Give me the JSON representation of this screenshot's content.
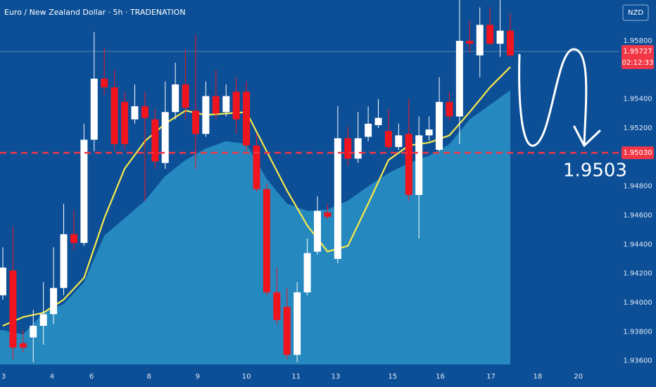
{
  "chart_data": {
    "type": "candlestick",
    "title": "Euro / New Zealand Dollar · 5h · TRADENATION",
    "currency": "NZD",
    "open": [
      1.9405,
      1.9422,
      1.9372,
      1.9376,
      1.9384,
      1.9392,
      1.941,
      1.9447,
      1.9441,
      1.9512,
      1.9554,
      1.9548,
      1.9538,
      1.9526,
      1.9535,
      1.9526,
      1.9496,
      1.9531,
      1.955,
      1.9532,
      1.9516,
      1.9542,
      1.9531,
      1.9545,
      1.9545,
      1.9508,
      1.9478,
      1.9407,
      1.9397,
      1.9364,
      1.9407,
      1.9435,
      1.9462,
      1.943,
      1.9513,
      1.9499,
      1.9514,
      1.9522,
      1.9518,
      1.9507,
      1.9516,
      1.9474,
      1.9515,
      1.9505,
      1.9538,
      1.9528,
      1.958,
      1.957,
      1.9591,
      1.9578,
      1.9587
    ],
    "high": [
      1.9438,
      1.9452,
      1.9381,
      1.9395,
      1.9414,
      1.9438,
      1.9468,
      1.9463,
      1.9523,
      1.9586,
      1.9575,
      1.956,
      1.9545,
      1.955,
      1.9545,
      1.9533,
      1.9552,
      1.9565,
      1.9574,
      1.9584,
      1.9552,
      1.956,
      1.955,
      1.9555,
      1.9552,
      1.9516,
      1.9482,
      1.9424,
      1.941,
      1.9414,
      1.9444,
      1.9473,
      1.9468,
      1.9535,
      1.9521,
      1.9531,
      1.9535,
      1.954,
      1.9533,
      1.9523,
      1.954,
      1.9528,
      1.9528,
      1.9555,
      1.9545,
      1.9608,
      1.9594,
      1.9603,
      1.9603,
      1.9608,
      1.9599
    ],
    "low": [
      1.9402,
      1.9361,
      1.9366,
      1.9359,
      1.9371,
      1.9385,
      1.9405,
      1.9436,
      1.9439,
      1.9504,
      1.9543,
      1.9504,
      1.9505,
      1.9523,
      1.947,
      1.9492,
      1.9492,
      1.9526,
      1.9526,
      1.9492,
      1.9514,
      1.9526,
      1.9528,
      1.9516,
      1.9504,
      1.9476,
      1.9405,
      1.9385,
      1.9361,
      1.9359,
      1.9405,
      1.9433,
      1.9457,
      1.9427,
      1.9494,
      1.9496,
      1.9511,
      1.952,
      1.9505,
      1.9505,
      1.947,
      1.9444,
      1.9511,
      1.9504,
      1.9525,
      1.9509,
      1.9572,
      1.9555,
      1.9577,
      1.9569,
      1.9569
    ],
    "close": [
      1.9424,
      1.9369,
      1.9369,
      1.9384,
      1.9392,
      1.941,
      1.9447,
      1.9441,
      1.9512,
      1.9554,
      1.9548,
      1.9509,
      1.9509,
      1.9535,
      1.9527,
      1.9497,
      1.9531,
      1.955,
      1.9534,
      1.9516,
      1.9542,
      1.953,
      1.9542,
      1.9526,
      1.9508,
      1.9478,
      1.9407,
      1.9388,
      1.9364,
      1.9407,
      1.9434,
      1.9463,
      1.9459,
      1.9513,
      1.9499,
      1.9513,
      1.9523,
      1.9527,
      1.9507,
      1.9515,
      1.9474,
      1.9515,
      1.9519,
      1.9538,
      1.9528,
      1.958,
      1.9578,
      1.9591,
      1.9578,
      1.9587,
      1.957
    ],
    "up_color": "#ffffff",
    "down_color": "#f0141e",
    "lines": [
      {
        "style": "area",
        "color": "#2a93c6",
        "x": [
          0,
          2,
          4,
          6,
          8,
          10,
          12,
          14,
          16,
          18,
          20,
          22,
          24,
          26,
          28,
          30,
          32,
          34,
          36,
          38,
          40,
          42,
          44,
          46,
          48,
          50
        ],
        "values": [
          1.9381,
          1.9378,
          1.9393,
          1.9399,
          1.9414,
          1.9446,
          1.9458,
          1.947,
          1.9487,
          1.9498,
          1.9506,
          1.9511,
          1.9509,
          1.9485,
          1.9468,
          1.9463,
          1.9464,
          1.947,
          1.948,
          1.9489,
          1.9496,
          1.9501,
          1.9509,
          1.9526,
          1.9536,
          1.9546
        ]
      },
      {
        "style": "line",
        "color": "#f7e84a",
        "x": [
          0,
          2,
          4,
          6,
          8,
          10,
          12,
          14,
          16,
          18,
          20,
          22,
          24,
          26,
          28,
          30,
          32,
          34,
          36,
          38,
          40,
          42,
          44,
          46,
          48,
          50
        ],
        "values": [
          1.9384,
          1.939,
          1.9393,
          1.9402,
          1.9417,
          1.9458,
          1.9492,
          1.9511,
          1.9523,
          1.9532,
          1.9529,
          1.953,
          1.9531,
          1.9504,
          1.9477,
          1.9453,
          1.9435,
          1.9439,
          1.9468,
          1.9498,
          1.9508,
          1.951,
          1.9515,
          1.9531,
          1.9548,
          1.9562
        ]
      }
    ],
    "levels": [
      {
        "value": 1.9503,
        "label": "1.95030",
        "color": "#f23645"
      }
    ],
    "last_price": {
      "value": 1.95727,
      "label": "1.95727",
      "countdown": "02:12:33",
      "color": "#f23645"
    },
    "annotation": "1.9503",
    "xlim": [
      -0.277,
      60.75
    ],
    "ylim": [
      1.93419,
      1.96081
    ],
    "yticks": [
      {
        "value": 1.958,
        "label": "1.95800"
      },
      {
        "value": 1.954,
        "label": "1.95400"
      },
      {
        "value": 1.952,
        "label": "1.95200"
      },
      {
        "value": 1.948,
        "label": "1.94800"
      },
      {
        "value": 1.946,
        "label": "1.94600"
      },
      {
        "value": 1.944,
        "label": "1.94400"
      },
      {
        "value": 1.942,
        "label": "1.94200"
      },
      {
        "value": 1.94,
        "label": "1.94000"
      },
      {
        "value": 1.938,
        "label": "1.93800"
      },
      {
        "value": 1.936,
        "label": "1.93600"
      }
    ],
    "xticks": [
      {
        "value": 0.07,
        "label": "3"
      },
      {
        "value": 4.85,
        "label": "4"
      },
      {
        "value": 8.74,
        "label": "6"
      },
      {
        "value": 14.4,
        "label": "8"
      },
      {
        "value": 19.2,
        "label": "9"
      },
      {
        "value": 24,
        "label": "10"
      },
      {
        "value": 28.9,
        "label": "11"
      },
      {
        "value": 32.8,
        "label": "13"
      },
      {
        "value": 38.4,
        "label": "15"
      },
      {
        "value": 43.1,
        "label": "16"
      },
      {
        "value": 48.1,
        "label": "17"
      },
      {
        "value": 52.7,
        "label": "18"
      },
      {
        "value": 56.7,
        "label": "20"
      }
    ]
  }
}
